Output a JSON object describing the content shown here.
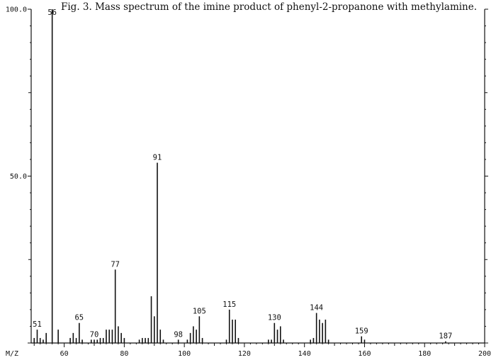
{
  "caption": "Fig. 3. Mass spectrum of the imine product of phenyl-2-propanone with methylamine.",
  "chart_data": {
    "type": "bar",
    "xlabel": "M/Z",
    "ylabel": "",
    "xlim": [
      49,
      200
    ],
    "ylim": [
      0,
      100
    ],
    "x_ticks": [
      60,
      80,
      100,
      120,
      140,
      160,
      180,
      200
    ],
    "y_ticks": [
      {
        "value": 100,
        "label": "100.0"
      },
      {
        "value": 50,
        "label": "50.0"
      }
    ],
    "grid": false,
    "peaks": [
      {
        "mz": 50,
        "intensity": 1.5
      },
      {
        "mz": 51,
        "intensity": 4,
        "label": "51"
      },
      {
        "mz": 52,
        "intensity": 1.5
      },
      {
        "mz": 53,
        "intensity": 1
      },
      {
        "mz": 54,
        "intensity": 3
      },
      {
        "mz": 56,
        "intensity": 100,
        "label": "56"
      },
      {
        "mz": 58,
        "intensity": 4
      },
      {
        "mz": 62,
        "intensity": 1.5
      },
      {
        "mz": 63,
        "intensity": 3
      },
      {
        "mz": 64,
        "intensity": 1.5
      },
      {
        "mz": 65,
        "intensity": 6,
        "label": "65"
      },
      {
        "mz": 66,
        "intensity": 1
      },
      {
        "mz": 69,
        "intensity": 1
      },
      {
        "mz": 70,
        "intensity": 1,
        "label": "70"
      },
      {
        "mz": 71,
        "intensity": 1
      },
      {
        "mz": 72,
        "intensity": 1.5
      },
      {
        "mz": 73,
        "intensity": 1.5
      },
      {
        "mz": 74,
        "intensity": 4
      },
      {
        "mz": 75,
        "intensity": 4
      },
      {
        "mz": 76,
        "intensity": 4
      },
      {
        "mz": 77,
        "intensity": 22,
        "label": "77"
      },
      {
        "mz": 78,
        "intensity": 5
      },
      {
        "mz": 79,
        "intensity": 3
      },
      {
        "mz": 80,
        "intensity": 1.5
      },
      {
        "mz": 85,
        "intensity": 1
      },
      {
        "mz": 86,
        "intensity": 1.5
      },
      {
        "mz": 87,
        "intensity": 1.5
      },
      {
        "mz": 88,
        "intensity": 1.5
      },
      {
        "mz": 89,
        "intensity": 14
      },
      {
        "mz": 90,
        "intensity": 8
      },
      {
        "mz": 91,
        "intensity": 54,
        "label": "91"
      },
      {
        "mz": 92,
        "intensity": 4
      },
      {
        "mz": 93,
        "intensity": 1
      },
      {
        "mz": 98,
        "intensity": 1,
        "label": "98"
      },
      {
        "mz": 101,
        "intensity": 1
      },
      {
        "mz": 102,
        "intensity": 3
      },
      {
        "mz": 103,
        "intensity": 5
      },
      {
        "mz": 104,
        "intensity": 4
      },
      {
        "mz": 105,
        "intensity": 8,
        "label": "105"
      },
      {
        "mz": 106,
        "intensity": 1.5
      },
      {
        "mz": 114,
        "intensity": 1
      },
      {
        "mz": 115,
        "intensity": 10,
        "label": "115"
      },
      {
        "mz": 116,
        "intensity": 7
      },
      {
        "mz": 117,
        "intensity": 7
      },
      {
        "mz": 118,
        "intensity": 1.5
      },
      {
        "mz": 128,
        "intensity": 1
      },
      {
        "mz": 129,
        "intensity": 1
      },
      {
        "mz": 130,
        "intensity": 6,
        "label": "130"
      },
      {
        "mz": 131,
        "intensity": 4
      },
      {
        "mz": 132,
        "intensity": 5
      },
      {
        "mz": 133,
        "intensity": 1
      },
      {
        "mz": 142,
        "intensity": 1
      },
      {
        "mz": 143,
        "intensity": 1.5
      },
      {
        "mz": 144,
        "intensity": 9,
        "label": "144"
      },
      {
        "mz": 145,
        "intensity": 7
      },
      {
        "mz": 146,
        "intensity": 6
      },
      {
        "mz": 147,
        "intensity": 7
      },
      {
        "mz": 148,
        "intensity": 1
      },
      {
        "mz": 159,
        "intensity": 2,
        "label": "159"
      },
      {
        "mz": 160,
        "intensity": 1
      },
      {
        "mz": 187,
        "intensity": 0.5,
        "label": "187"
      }
    ]
  }
}
